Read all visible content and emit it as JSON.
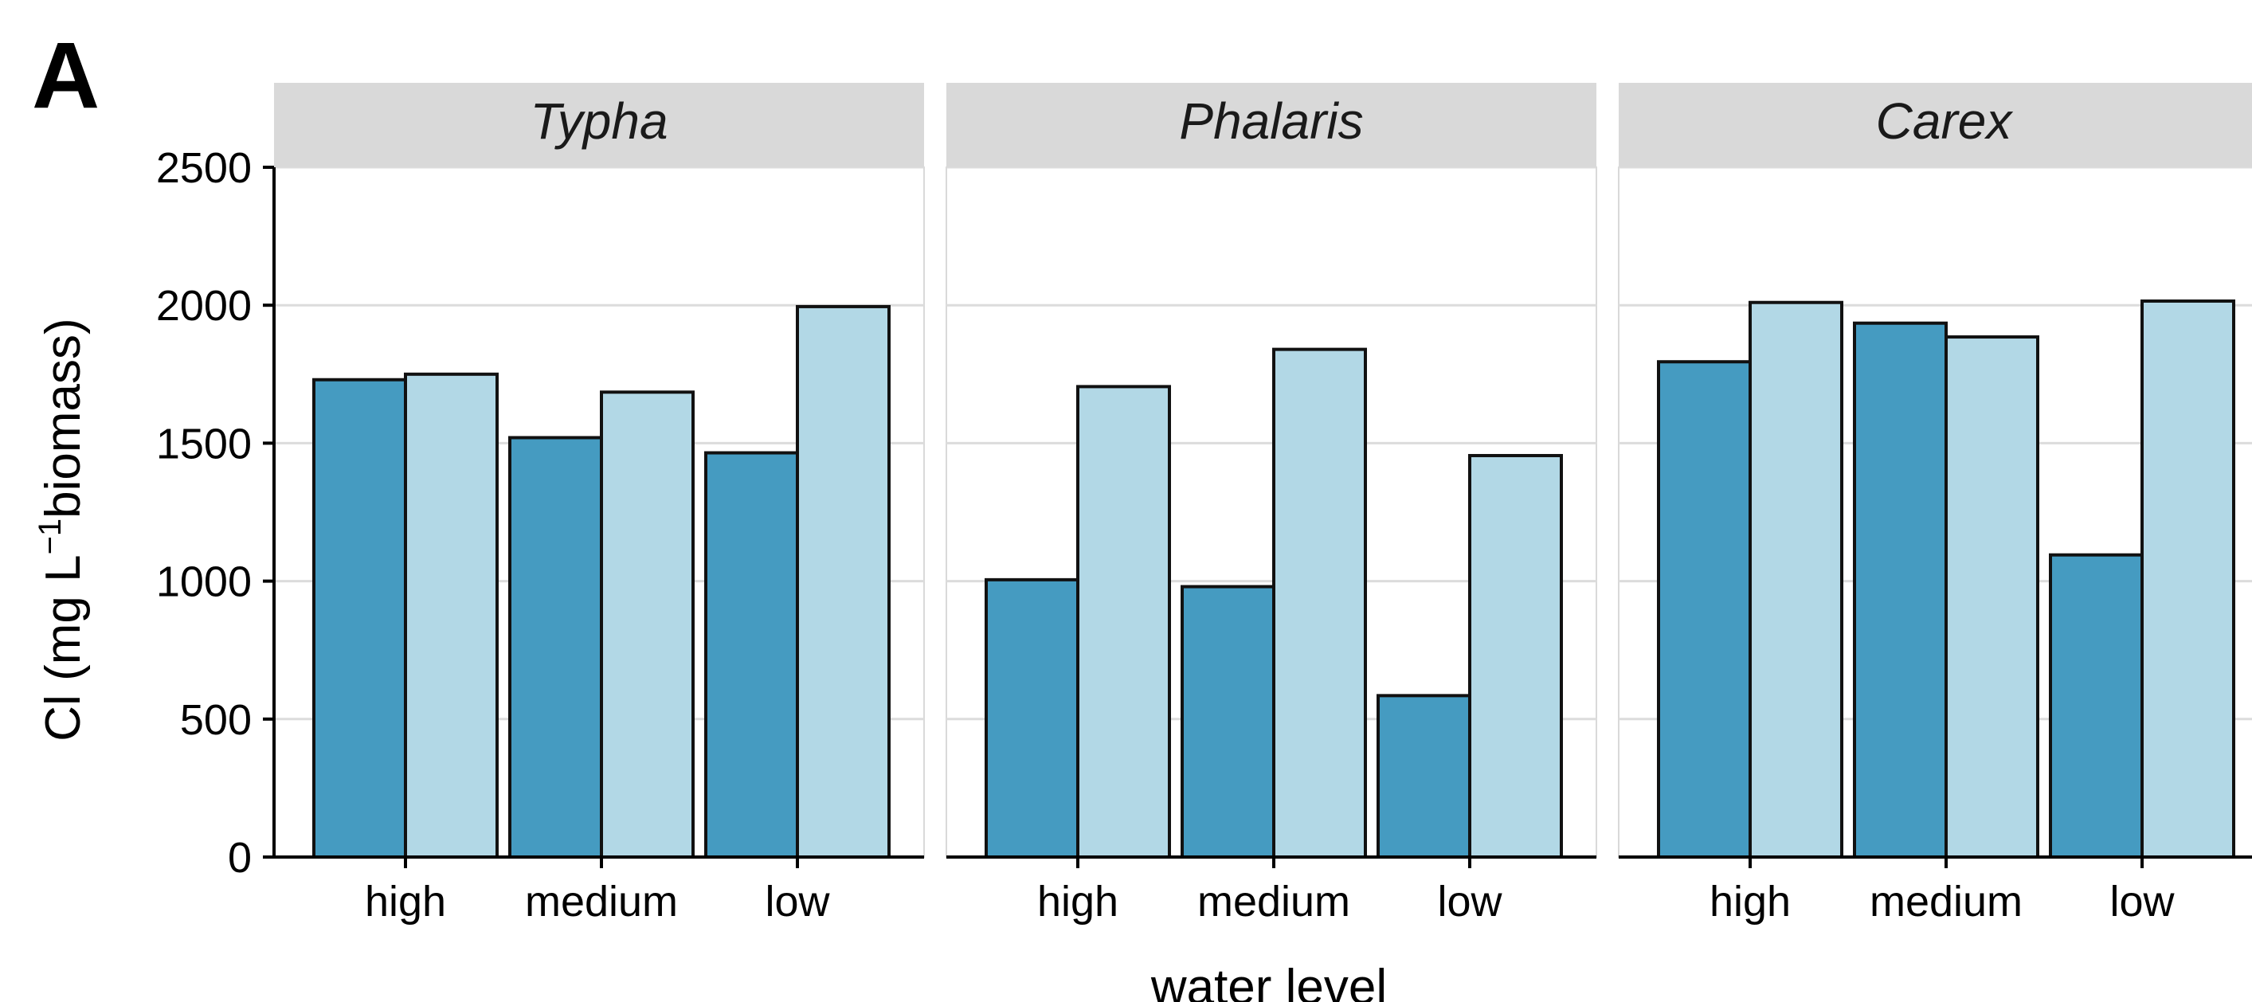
{
  "panel_label": "A",
  "chart_data": {
    "type": "bar",
    "panels": [
      {
        "facet": "Typha",
        "categories": [
          "high",
          "medium",
          "low"
        ],
        "series": [
          {
            "color": "#459bc1",
            "values": [
              1730,
              1520,
              1465
            ]
          },
          {
            "color": "#b2d8e6",
            "values": [
              1750,
              1685,
              1995
            ]
          }
        ]
      },
      {
        "facet": "Phalaris",
        "categories": [
          "high",
          "medium",
          "low"
        ],
        "series": [
          {
            "color": "#459bc1",
            "values": [
              1005,
              980,
              585
            ]
          },
          {
            "color": "#b2d8e6",
            "values": [
              1705,
              1840,
              1455
            ]
          }
        ]
      },
      {
        "facet": "Carex",
        "categories": [
          "high",
          "medium",
          "low"
        ],
        "series": [
          {
            "color": "#459bc1",
            "values": [
              1795,
              1935,
              1095
            ]
          },
          {
            "color": "#b2d8e6",
            "values": [
              2010,
              1885,
              2015
            ]
          }
        ]
      }
    ],
    "ylabel_main": "Cl (mg L",
    "ylabel_sup": "−1",
    "ylabel_tail": "biomass)",
    "xlabel": "water level",
    "ylim": [
      0,
      2500
    ],
    "yticks": [
      0,
      500,
      1000,
      1500,
      2000,
      2500
    ],
    "grid": true,
    "strip_color": "#d9d9d9"
  }
}
